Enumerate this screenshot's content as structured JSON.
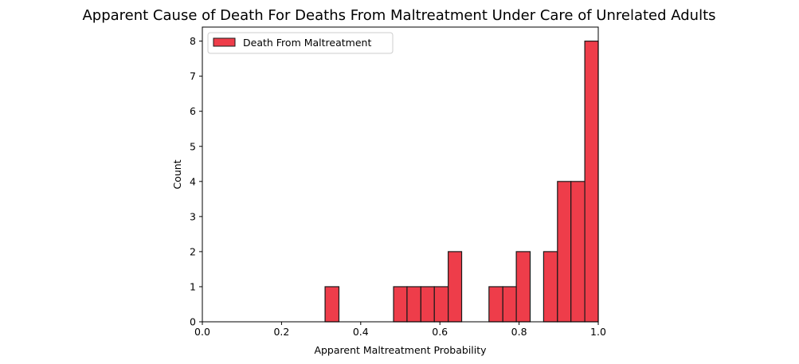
{
  "chart_data": {
    "type": "bar",
    "title": "Apparent Cause of Death For Deaths From Maltreatment Under Care of Unrelated Adults",
    "xlabel": "Apparent Maltreatment Probability",
    "ylabel": "Count",
    "xlim": [
      0.0,
      1.0
    ],
    "ylim": [
      0,
      8.4
    ],
    "xticks": [
      "0.0",
      "0.2",
      "0.4",
      "0.6",
      "0.8",
      "1.0"
    ],
    "yticks": [
      "0",
      "1",
      "2",
      "3",
      "4",
      "5",
      "6",
      "7",
      "8"
    ],
    "grid": false,
    "legend_position": "top-left",
    "series": [
      {
        "name": "Death From Maltreatment",
        "color": "#ee3d4a",
        "edge_color": "#1a1a1a",
        "bins": [
          {
            "x0": 0.31,
            "x1": 0.345,
            "count": 1
          },
          {
            "x0": 0.483,
            "x1": 0.517,
            "count": 1
          },
          {
            "x0": 0.517,
            "x1": 0.552,
            "count": 1
          },
          {
            "x0": 0.552,
            "x1": 0.586,
            "count": 1
          },
          {
            "x0": 0.586,
            "x1": 0.621,
            "count": 1
          },
          {
            "x0": 0.621,
            "x1": 0.655,
            "count": 2
          },
          {
            "x0": 0.724,
            "x1": 0.759,
            "count": 1
          },
          {
            "x0": 0.759,
            "x1": 0.793,
            "count": 1
          },
          {
            "x0": 0.793,
            "x1": 0.828,
            "count": 2
          },
          {
            "x0": 0.862,
            "x1": 0.897,
            "count": 2
          },
          {
            "x0": 0.897,
            "x1": 0.931,
            "count": 4
          },
          {
            "x0": 0.931,
            "x1": 0.966,
            "count": 4
          },
          {
            "x0": 0.966,
            "x1": 1.0,
            "count": 8
          }
        ]
      }
    ]
  }
}
